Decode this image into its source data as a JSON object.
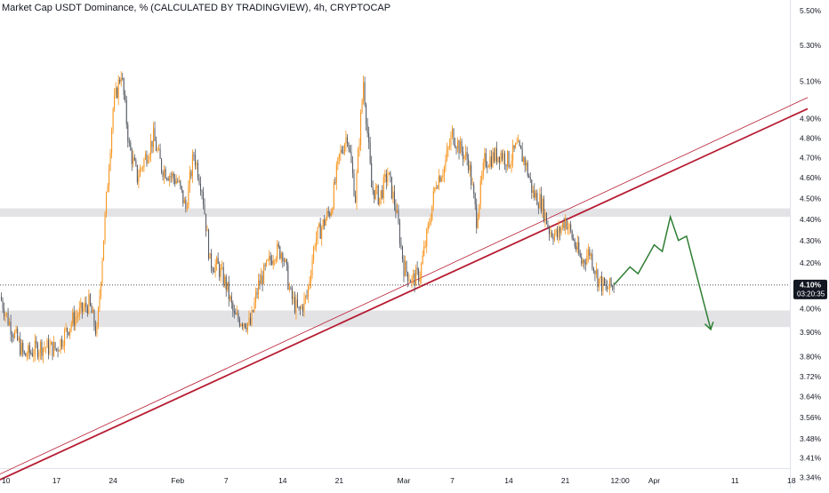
{
  "header": {
    "title": "Market Cap USDT Dominance, % (CALCULATED BY TRADINGVIEW), 4h, CRYPTOCAP"
  },
  "colors": {
    "candle_up": "#f7931a",
    "candle_down": "#555963",
    "zone_fill": "#e3e3e6",
    "trendline": "#b71c32",
    "projection": "#2e7d32",
    "grid_text": "#131722",
    "price_label_bg": "#131722"
  },
  "price_axis": {
    "scale": "log",
    "ticks": [
      "5.50%",
      "5.30%",
      "5.10%",
      "4.90%",
      "4.80%",
      "4.70%",
      "4.60%",
      "4.50%",
      "4.40%",
      "4.30%",
      "4.20%",
      "4.00%",
      "3.90%",
      "3.80%",
      "3.72%",
      "3.64%",
      "3.56%",
      "3.48%",
      "3.41%",
      "3.34%"
    ],
    "current_price": "4.10%",
    "countdown": "03:20:35"
  },
  "time_axis": {
    "ticks": [
      "10",
      "17",
      "24",
      "Feb",
      "7",
      "14",
      "21",
      "Mar",
      "7",
      "14",
      "21",
      "12:00",
      "Apr",
      "11",
      "18"
    ]
  },
  "chart_data": {
    "type": "candlestick",
    "title": "Market Cap USDT Dominance, % (CALCULATED BY TRADINGVIEW), 4h, CRYPTOCAP",
    "interval": "4h",
    "y_scale": "log",
    "ylim": [
      3.33,
      5.56
    ],
    "current_value": 4.1,
    "path_keypoints": [
      {
        "x": "Jan 10",
        "y": 4.05
      },
      {
        "x": "Jan 11",
        "y": 3.95
      },
      {
        "x": "Jan 13",
        "y": 3.8
      },
      {
        "x": "Jan 15",
        "y": 3.84
      },
      {
        "x": "Jan 17",
        "y": 3.83
      },
      {
        "x": "Jan 19",
        "y": 3.95
      },
      {
        "x": "Jan 21",
        "y": 4.02
      },
      {
        "x": "Jan 22",
        "y": 3.89
      },
      {
        "x": "Jan 23",
        "y": 4.4
      },
      {
        "x": "Jan 24",
        "y": 4.95
      },
      {
        "x": "Jan 25",
        "y": 5.15
      },
      {
        "x": "Jan 26",
        "y": 4.75
      },
      {
        "x": "Jan 27",
        "y": 4.6
      },
      {
        "x": "Jan 29",
        "y": 4.8
      },
      {
        "x": "Jan 30",
        "y": 4.65
      },
      {
        "x": "Feb 1",
        "y": 4.58
      },
      {
        "x": "Feb 2",
        "y": 4.45
      },
      {
        "x": "Feb 3",
        "y": 4.72
      },
      {
        "x": "Feb 4",
        "y": 4.55
      },
      {
        "x": "Feb 5",
        "y": 4.2
      },
      {
        "x": "Feb 6",
        "y": 4.18
      },
      {
        "x": "Feb 7",
        "y": 4.1
      },
      {
        "x": "Feb 8",
        "y": 3.96
      },
      {
        "x": "Feb 9",
        "y": 3.95
      },
      {
        "x": "Feb 10",
        "y": 3.93
      },
      {
        "x": "Feb 11",
        "y": 4.1
      },
      {
        "x": "Feb 13",
        "y": 4.25
      },
      {
        "x": "Feb 14",
        "y": 4.25
      },
      {
        "x": "Feb 15",
        "y": 4.05
      },
      {
        "x": "Feb 16",
        "y": 3.98
      },
      {
        "x": "Feb 17",
        "y": 4.05
      },
      {
        "x": "Feb 18",
        "y": 4.3
      },
      {
        "x": "Feb 20",
        "y": 4.45
      },
      {
        "x": "Feb 21",
        "y": 4.7
      },
      {
        "x": "Feb 22",
        "y": 4.82
      },
      {
        "x": "Feb 23",
        "y": 4.5
      },
      {
        "x": "Feb 24",
        "y": 5.1
      },
      {
        "x": "Feb 25",
        "y": 4.55
      },
      {
        "x": "Feb 26",
        "y": 4.5
      },
      {
        "x": "Feb 27",
        "y": 4.62
      },
      {
        "x": "Feb 28",
        "y": 4.45
      },
      {
        "x": "Mar 1",
        "y": 4.18
      },
      {
        "x": "Mar 2",
        "y": 4.12
      },
      {
        "x": "Mar 3",
        "y": 4.15
      },
      {
        "x": "Mar 4",
        "y": 4.35
      },
      {
        "x": "Mar 5",
        "y": 4.58
      },
      {
        "x": "Mar 6",
        "y": 4.65
      },
      {
        "x": "Mar 7",
        "y": 4.82
      },
      {
        "x": "Mar 8",
        "y": 4.74
      },
      {
        "x": "Mar 9",
        "y": 4.68
      },
      {
        "x": "Mar 10",
        "y": 4.4
      },
      {
        "x": "Mar 11",
        "y": 4.68
      },
      {
        "x": "Mar 12",
        "y": 4.7
      },
      {
        "x": "Mar 13",
        "y": 4.72
      },
      {
        "x": "Mar 14",
        "y": 4.68
      },
      {
        "x": "Mar 15",
        "y": 4.75
      },
      {
        "x": "Mar 16",
        "y": 4.68
      },
      {
        "x": "Mar 17",
        "y": 4.52
      },
      {
        "x": "Mar 18",
        "y": 4.48
      },
      {
        "x": "Mar 19",
        "y": 4.35
      },
      {
        "x": "Mar 20",
        "y": 4.32
      },
      {
        "x": "Mar 21",
        "y": 4.4
      },
      {
        "x": "Mar 22",
        "y": 4.3
      },
      {
        "x": "Mar 23",
        "y": 4.2
      },
      {
        "x": "Mar 24",
        "y": 4.25
      },
      {
        "x": "Mar 25",
        "y": 4.13
      },
      {
        "x": "Mar 26",
        "y": 4.08
      },
      {
        "x": "Mar 27",
        "y": 4.1
      }
    ],
    "zones": [
      {
        "from": 4.41,
        "to": 4.45
      },
      {
        "from": 3.92,
        "to": 3.99
      }
    ],
    "trendlines": [
      {
        "from": {
          "x": "Jan 10",
          "y": 3.33
        },
        "to": {
          "x": "Apr 20",
          "y": 4.95
        }
      },
      {
        "from": {
          "x": "Jan 10",
          "y": 3.35
        },
        "to": {
          "x": "Apr 20",
          "y": 5.01
        }
      }
    ],
    "projection": [
      {
        "x": "Mar 27",
        "y": 4.1
      },
      {
        "x": "Mar 29",
        "y": 4.18
      },
      {
        "x": "Mar 30",
        "y": 4.15
      },
      {
        "x": "Apr 1",
        "y": 4.28
      },
      {
        "x": "Apr 2",
        "y": 4.25
      },
      {
        "x": "Apr 3",
        "y": 4.41
      },
      {
        "x": "Apr 4",
        "y": 4.3
      },
      {
        "x": "Apr 5",
        "y": 4.32
      },
      {
        "x": "Apr 8",
        "y": 3.91
      }
    ],
    "legend": "none",
    "grid": false
  }
}
